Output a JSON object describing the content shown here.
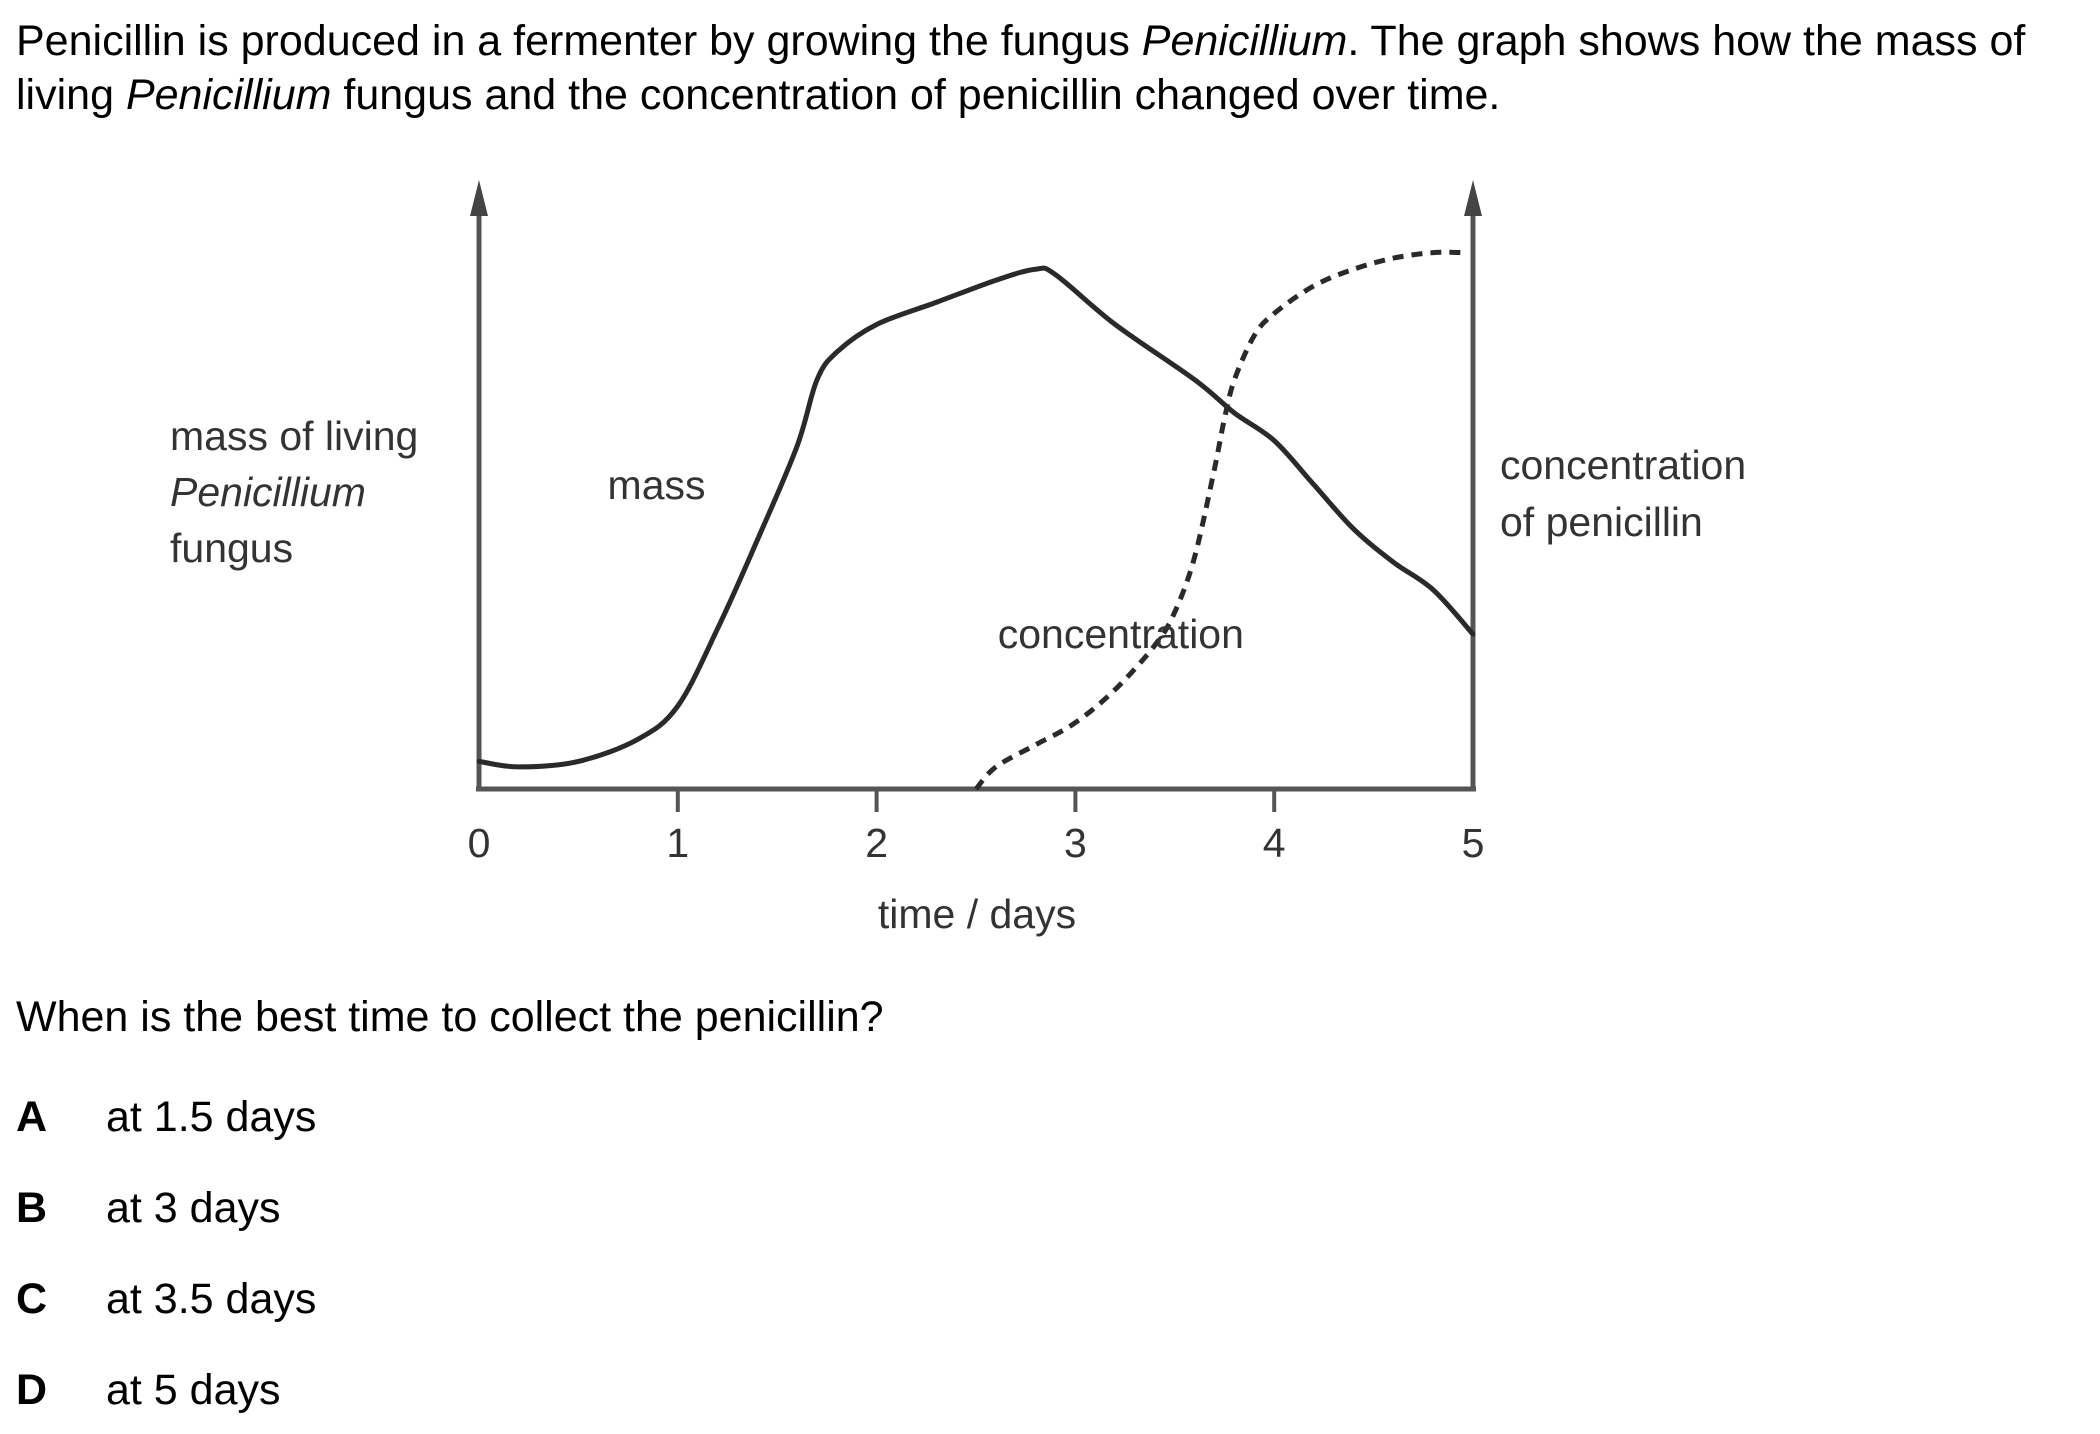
{
  "intro": {
    "part1": "Penicillin is produced in a fermenter by growing the fungus ",
    "fungus1": "Penicillium",
    "part2": ". The graph shows how the mass of living ",
    "fungus2": "Penicillium",
    "part3": " fungus and the concentration of penicillin changed over time."
  },
  "chart_data": {
    "type": "line",
    "xlabel": "time / days",
    "ylabel_left": {
      "line1": "mass of living",
      "line2": "Penicillium",
      "line3": "fungus"
    },
    "ylabel_right": {
      "line1": "concentration",
      "line2": "of penicillin"
    },
    "xlim": [
      0,
      5
    ],
    "x_ticks": [
      "0",
      "1",
      "2",
      "3",
      "4",
      "5"
    ],
    "grid": false,
    "series": [
      {
        "name": "mass",
        "style": "solid",
        "x": [
          0,
          0.2,
          0.5,
          0.8,
          1.0,
          1.2,
          1.4,
          1.6,
          1.7,
          1.8,
          2.0,
          2.3,
          2.6,
          2.8,
          2.9,
          3.2,
          3.6,
          3.8,
          4.0,
          4.2,
          4.4,
          4.6,
          4.8,
          5.0
        ],
        "y": [
          0.05,
          0.04,
          0.05,
          0.09,
          0.15,
          0.29,
          0.45,
          0.62,
          0.74,
          0.79,
          0.84,
          0.88,
          0.92,
          0.94,
          0.93,
          0.84,
          0.74,
          0.68,
          0.63,
          0.55,
          0.47,
          0.41,
          0.36,
          0.28
        ]
      },
      {
        "name": "concentration",
        "style": "dashed",
        "x": [
          2.5,
          2.6,
          2.8,
          3.0,
          3.2,
          3.4,
          3.5,
          3.6,
          3.7,
          3.75,
          3.8,
          3.9,
          4.0,
          4.2,
          4.4,
          4.6,
          4.8,
          4.95
        ],
        "y": [
          0.0,
          0.04,
          0.08,
          0.12,
          0.18,
          0.26,
          0.32,
          0.42,
          0.58,
          0.67,
          0.74,
          0.82,
          0.86,
          0.91,
          0.94,
          0.96,
          0.97,
          0.97
        ]
      }
    ],
    "annotations": [
      {
        "text": "mass",
        "x": 1.2,
        "y": 0.55
      },
      {
        "text": "concentration",
        "x": 2.7,
        "y": 0.28
      }
    ]
  },
  "question": "When is the best time to collect the penicillin?",
  "options": [
    {
      "letter": "A",
      "text": "at 1.5 days"
    },
    {
      "letter": "B",
      "text": "at 3 days"
    },
    {
      "letter": "C",
      "text": "at 3.5 days"
    },
    {
      "letter": "D",
      "text": "at 5 days"
    }
  ]
}
